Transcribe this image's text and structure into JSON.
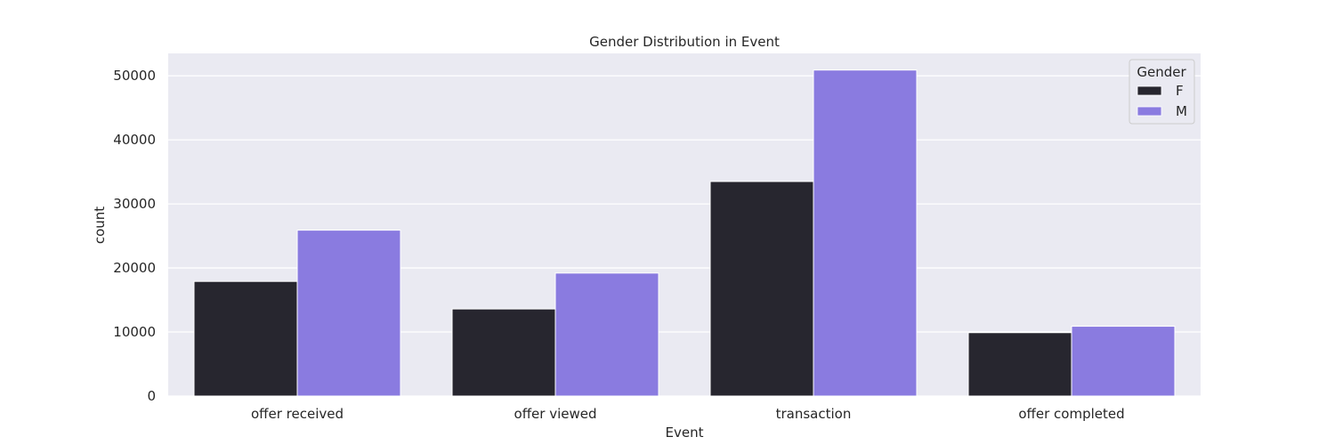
{
  "chart_data": {
    "type": "bar",
    "title": "Gender Distribution in Event",
    "xlabel": "Event",
    "ylabel": "count",
    "categories": [
      "offer received",
      "offer viewed",
      "transaction",
      "offer completed"
    ],
    "series": [
      {
        "name": "F",
        "color": "#27262f",
        "values": [
          17900,
          13600,
          33500,
          9900
        ]
      },
      {
        "name": "M",
        "color": "#8a7be0",
        "values": [
          25900,
          19200,
          50900,
          10900
        ]
      }
    ],
    "ylim": [
      0,
      53500
    ],
    "yticks": [
      0,
      10000,
      20000,
      30000,
      40000,
      50000
    ],
    "grid": true,
    "legend": {
      "title": "Gender",
      "position": "top-right"
    },
    "background_color": "#eaeaf2"
  }
}
